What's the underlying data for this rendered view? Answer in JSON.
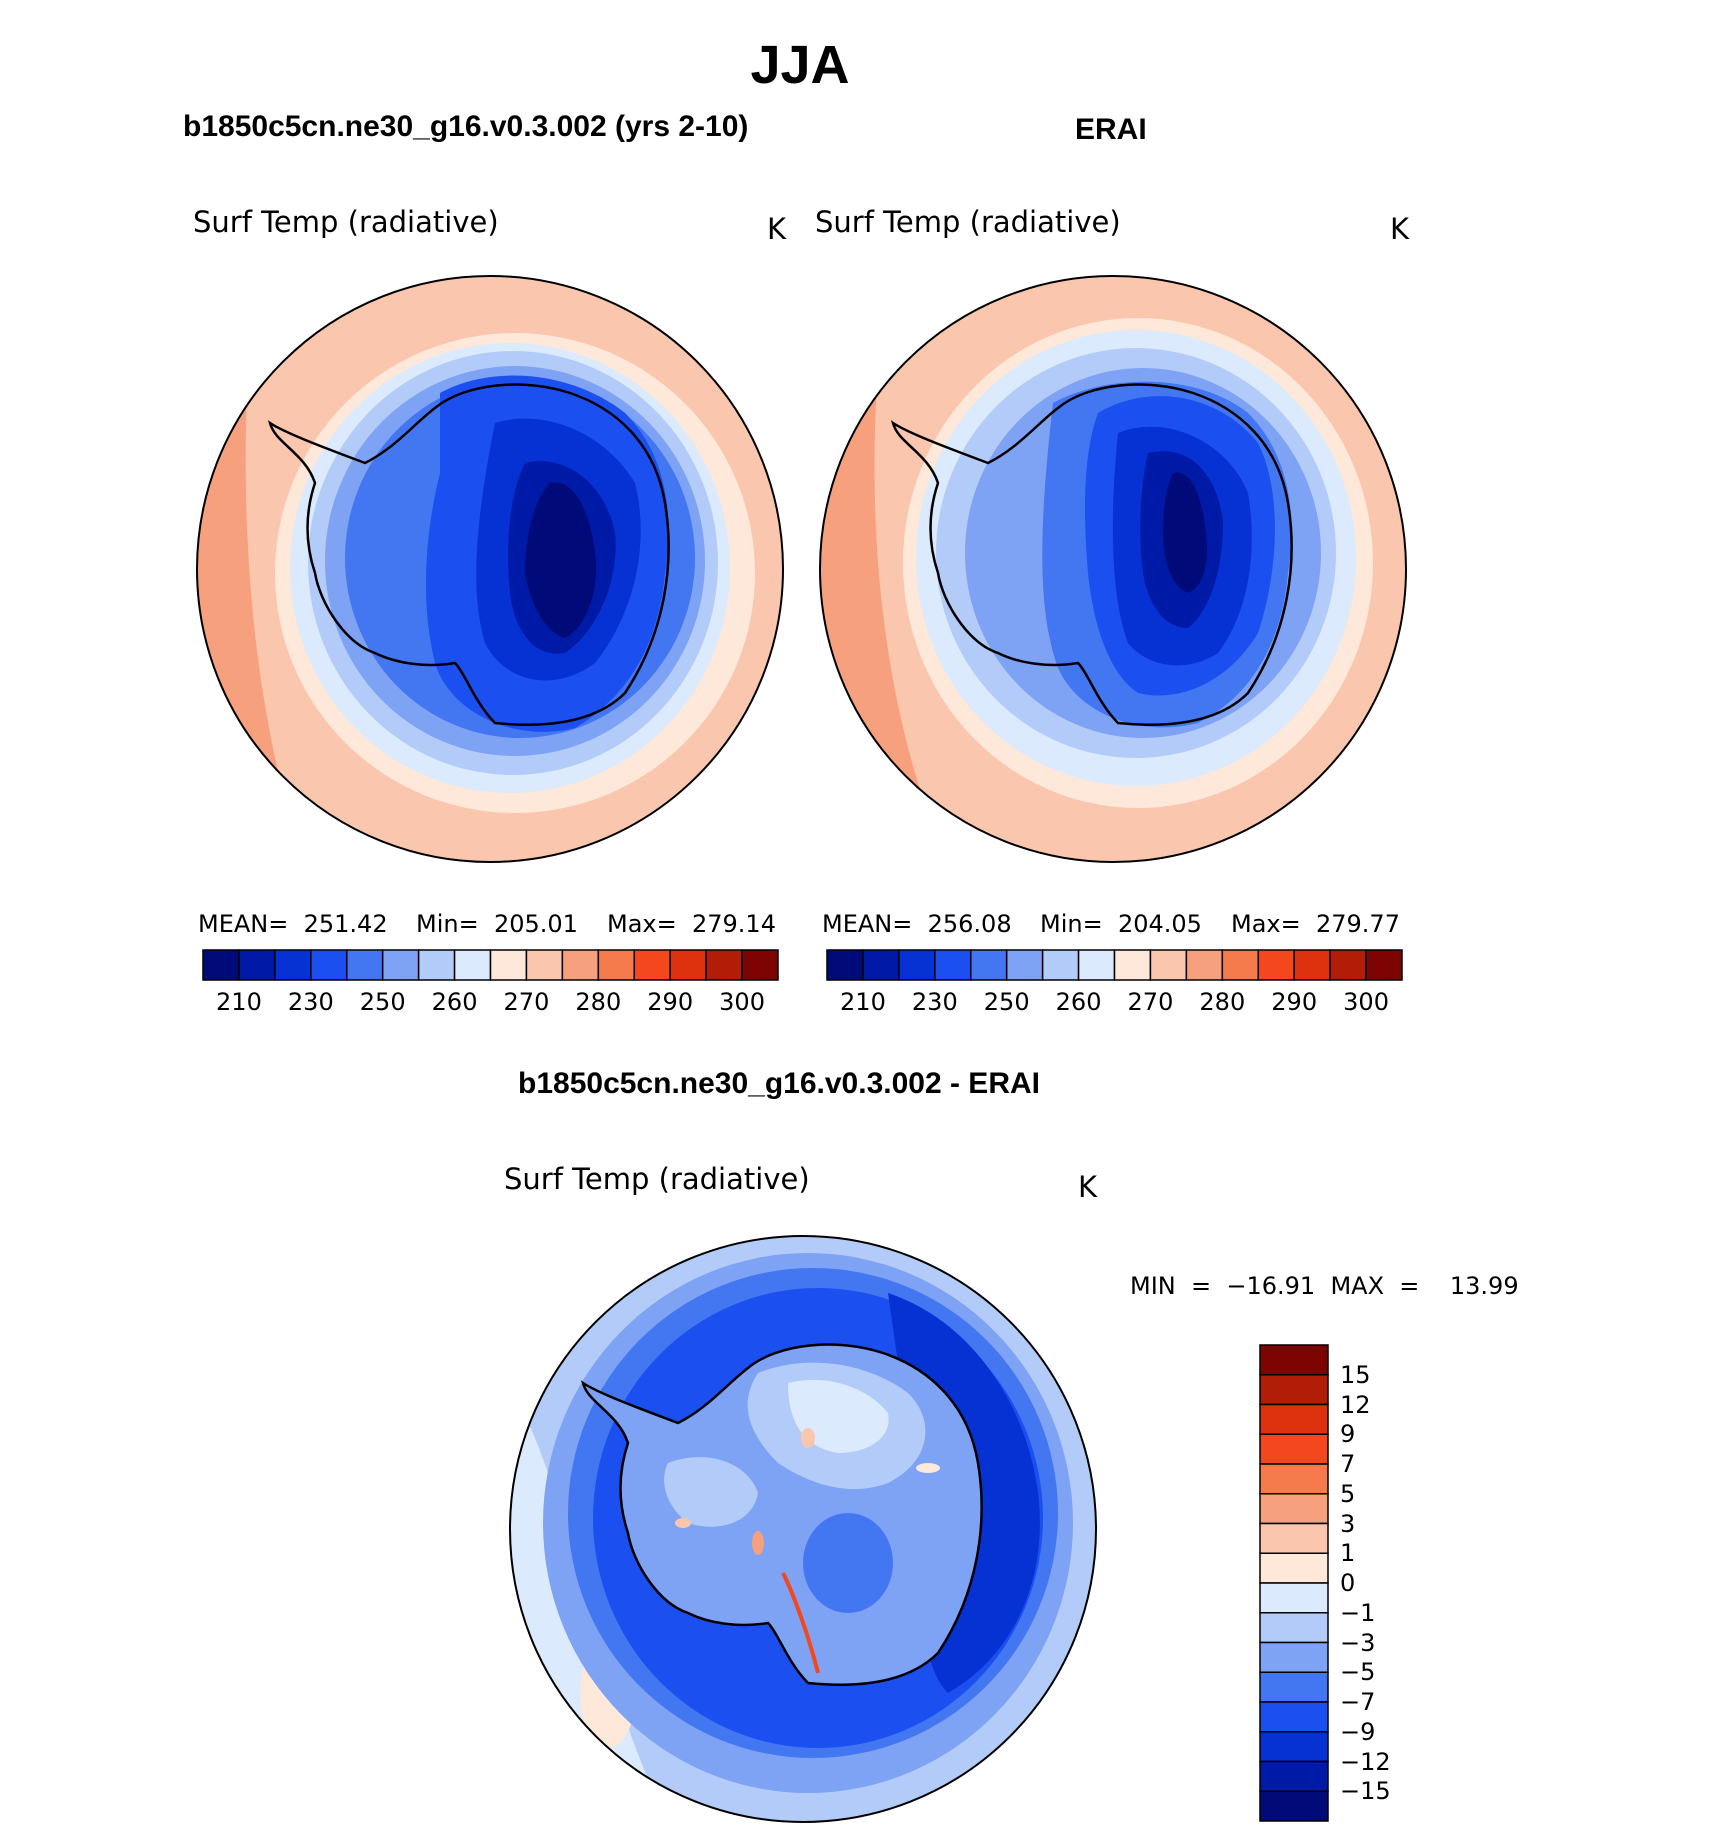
{
  "title": "JJA",
  "panels": [
    {
      "subtitle": "b1850c5cn.ne30_g16.v0.3.002 (yrs 2-10)",
      "label": "Surf Temp (radiative)",
      "units": "K",
      "stats": {
        "mean": "MEAN=  251.42",
        "min": "Min=  205.01",
        "max": "Max=  279.14"
      }
    },
    {
      "subtitle": "ERAI",
      "label": "Surf Temp (radiative)",
      "units": "K",
      "stats": {
        "mean": "MEAN=  256.08",
        "min": "Min=  204.05",
        "max": "Max=  279.77"
      }
    },
    {
      "subtitle": "b1850c5cn.ne30_g16.v0.3.002 - ERAI",
      "label": "Surf Temp (radiative)",
      "units": "K",
      "stats": {
        "minmax": "MIN  =  −16.91  MAX  =    13.99"
      }
    }
  ],
  "colorbars": {
    "absolute": {
      "colors": [
        "#000a78",
        "#001aa8",
        "#0631d3",
        "#1c4ff0",
        "#4377f2",
        "#7ea2f4",
        "#b3cbf8",
        "#dbeafc",
        "#fde8d9",
        "#fac6ae",
        "#f6a07e",
        "#f57a4c",
        "#f4471d",
        "#dd300c",
        "#b21d08",
        "#7d0400"
      ],
      "tick_labels": [
        "210",
        "230",
        "250",
        "260",
        "270",
        "280",
        "290",
        "300"
      ]
    },
    "difference": {
      "colors": [
        "#000a78",
        "#001aa8",
        "#0631d3",
        "#1c4ff0",
        "#4377f2",
        "#7ea2f4",
        "#b3cbf8",
        "#dbeafc",
        "#fde8d9",
        "#fac6ae",
        "#f6a07e",
        "#f57a4c",
        "#f4471d",
        "#dd300c",
        "#b21d08",
        "#7d0400"
      ],
      "tick_labels": [
        "−15",
        "−12",
        "−9",
        "−7",
        "−5",
        "−3",
        "−1",
        "0",
        "1",
        "3",
        "5",
        "7",
        "9",
        "12",
        "15"
      ]
    }
  }
}
